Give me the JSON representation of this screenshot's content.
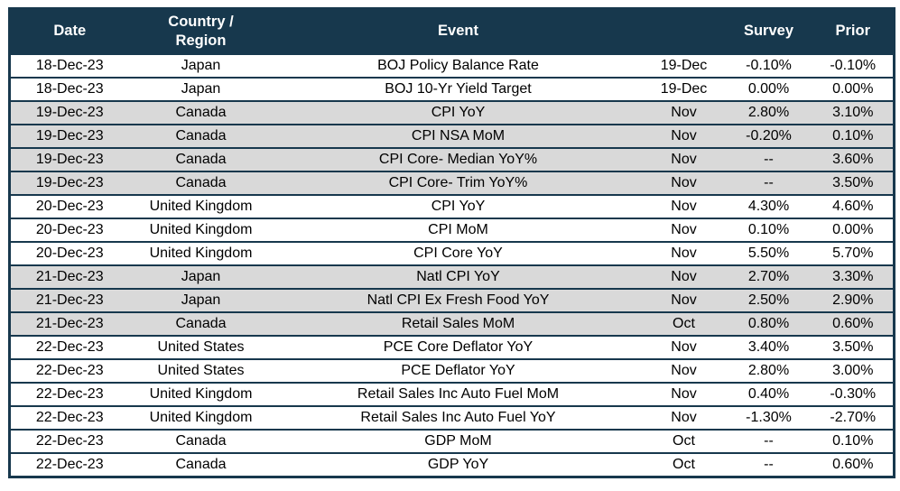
{
  "table": {
    "name": "economic-calendar",
    "headers": [
      "Date",
      "Country / Region",
      "Event",
      "",
      "Survey",
      "Prior"
    ],
    "colors": {
      "header_bg": "#17384D",
      "header_text": "#FFFFFF",
      "border": "#17384D",
      "row_bg": "#FFFFFF",
      "shaded_row_bg": "#D9D9D9",
      "body_text": "#000000"
    },
    "rows": [
      {
        "date": "18-Dec-23",
        "country": "Japan",
        "event": "BOJ Policy Balance Rate",
        "period": "19-Dec",
        "survey": "-0.10%",
        "prior": "-0.10%",
        "shaded": false
      },
      {
        "date": "18-Dec-23",
        "country": "Japan",
        "event": "BOJ 10-Yr Yield Target",
        "period": "19-Dec",
        "survey": "0.00%",
        "prior": "0.00%",
        "shaded": false
      },
      {
        "date": "19-Dec-23",
        "country": "Canada",
        "event": "CPI YoY",
        "period": "Nov",
        "survey": "2.80%",
        "prior": "3.10%",
        "shaded": true
      },
      {
        "date": "19-Dec-23",
        "country": "Canada",
        "event": "CPI NSA MoM",
        "period": "Nov",
        "survey": "-0.20%",
        "prior": "0.10%",
        "shaded": true
      },
      {
        "date": "19-Dec-23",
        "country": "Canada",
        "event": "CPI Core- Median YoY%",
        "period": "Nov",
        "survey": "--",
        "prior": "3.60%",
        "shaded": true
      },
      {
        "date": "19-Dec-23",
        "country": "Canada",
        "event": "CPI Core- Trim YoY%",
        "period": "Nov",
        "survey": "--",
        "prior": "3.50%",
        "shaded": true
      },
      {
        "date": "20-Dec-23",
        "country": "United Kingdom",
        "event": "CPI YoY",
        "period": "Nov",
        "survey": "4.30%",
        "prior": "4.60%",
        "shaded": false
      },
      {
        "date": "20-Dec-23",
        "country": "United Kingdom",
        "event": "CPI MoM",
        "period": "Nov",
        "survey": "0.10%",
        "prior": "0.00%",
        "shaded": false
      },
      {
        "date": "20-Dec-23",
        "country": "United Kingdom",
        "event": "CPI Core YoY",
        "period": "Nov",
        "survey": "5.50%",
        "prior": "5.70%",
        "shaded": false
      },
      {
        "date": "21-Dec-23",
        "country": "Japan",
        "event": "Natl CPI YoY",
        "period": "Nov",
        "survey": "2.70%",
        "prior": "3.30%",
        "shaded": true
      },
      {
        "date": "21-Dec-23",
        "country": "Japan",
        "event": "Natl CPI Ex Fresh Food YoY",
        "period": "Nov",
        "survey": "2.50%",
        "prior": "2.90%",
        "shaded": true
      },
      {
        "date": "21-Dec-23",
        "country": "Canada",
        "event": "Retail Sales MoM",
        "period": "Oct",
        "survey": "0.80%",
        "prior": "0.60%",
        "shaded": true
      },
      {
        "date": "22-Dec-23",
        "country": "United States",
        "event": "PCE Core Deflator YoY",
        "period": "Nov",
        "survey": "3.40%",
        "prior": "3.50%",
        "shaded": false
      },
      {
        "date": "22-Dec-23",
        "country": "United States",
        "event": "PCE Deflator YoY",
        "period": "Nov",
        "survey": "2.80%",
        "prior": "3.00%",
        "shaded": false
      },
      {
        "date": "22-Dec-23",
        "country": "United Kingdom",
        "event": "Retail Sales Inc Auto Fuel MoM",
        "period": "Nov",
        "survey": "0.40%",
        "prior": "-0.30%",
        "shaded": false
      },
      {
        "date": "22-Dec-23",
        "country": "United Kingdom",
        "event": "Retail Sales Inc Auto Fuel YoY",
        "period": "Nov",
        "survey": "-1.30%",
        "prior": "-2.70%",
        "shaded": false
      },
      {
        "date": "22-Dec-23",
        "country": "Canada",
        "event": "GDP MoM",
        "period": "Oct",
        "survey": "--",
        "prior": "0.10%",
        "shaded": false
      },
      {
        "date": "22-Dec-23",
        "country": "Canada",
        "event": "GDP YoY",
        "period": "Oct",
        "survey": "--",
        "prior": "0.60%",
        "shaded": false
      }
    ]
  }
}
